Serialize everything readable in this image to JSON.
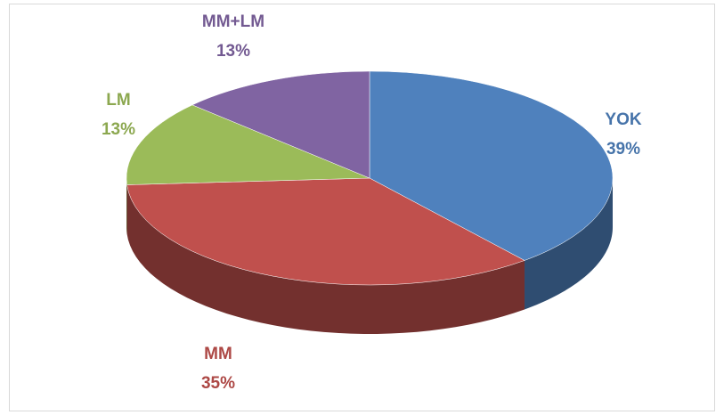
{
  "chart_data": {
    "type": "pie",
    "categories": [
      "YOK",
      "MM",
      "LM",
      "MM+LM"
    ],
    "values": [
      39,
      35,
      13,
      13
    ],
    "value_labels": [
      "39%",
      "35%",
      "13%",
      "13%"
    ],
    "colors": [
      "#4f81bd",
      "#c0504d",
      "#9bbb59",
      "#8064a2"
    ]
  }
}
